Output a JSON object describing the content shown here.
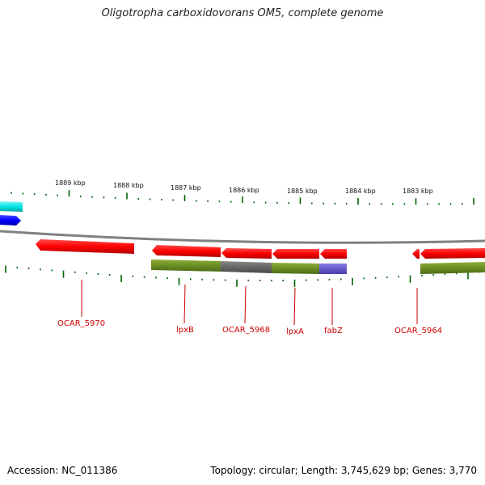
{
  "title": "Oligotropha carboxidovorans OM5, complete genome",
  "footer": {
    "accession": "Accession: NC_011386",
    "topology": "Topology: circular; Length: 3,745,629 bp; Genes: 3,770"
  },
  "scale": {
    "ticks": [
      "1889 kbp",
      "1888 kbp",
      "1887 kbp",
      "1886 kbp",
      "1885 kbp",
      "1884 kbp",
      "1883 kbp"
    ]
  },
  "genes": {
    "labels": [
      "OCAR_5970",
      "lpxB",
      "OCAR_5968",
      "lpxA",
      "fabZ",
      "OCAR_5964"
    ]
  },
  "colors": {
    "forward_gene": "#00e5e5",
    "forward_gene_2": "#0000ff",
    "reverse_gene": "#ff0000",
    "cog_olive": "#6b8e23",
    "cog_gray": "#666666",
    "cog_purple": "#6a5acd",
    "backbone": "#808080",
    "tick": "#006400",
    "label": "#cc0000"
  }
}
